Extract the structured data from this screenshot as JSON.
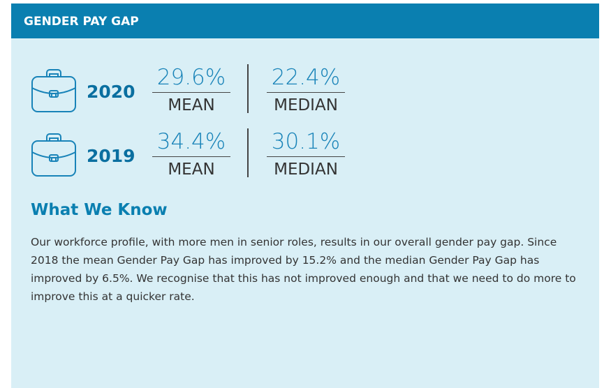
{
  "header": {
    "title": "GENDER PAY GAP"
  },
  "rows": [
    {
      "year": "2020",
      "mean": {
        "value": "29.6%",
        "label": "MEAN"
      },
      "median": {
        "value": "22.4%",
        "label": "MEDIAN"
      }
    },
    {
      "year": "2019",
      "mean": {
        "value": "34.4%",
        "label": "MEAN"
      },
      "median": {
        "value": "30.1%",
        "label": "MEDIAN"
      }
    }
  ],
  "section": {
    "heading": "What We Know",
    "body": "Our workforce profile, with more men in senior roles, results in our overall gender pay gap. Since 2018 the mean Gender Pay Gap has improved by 15.2% and the median Gender Pay Gap has improved by 6.5%. We recognise that this has not improved enough and that we need to do more to improve this at a quicker rate."
  }
}
